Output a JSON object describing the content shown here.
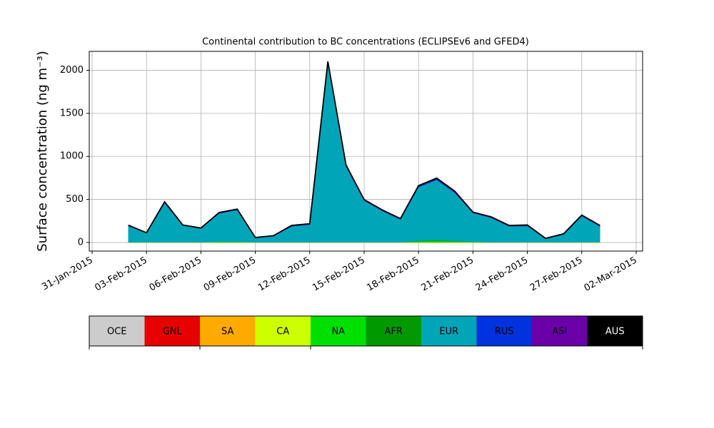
{
  "chart_data": {
    "type": "stacked_area",
    "title": "Continental contribution to BC concentrations (ECLIPSEv6 and GFED4)",
    "y_label": "Surface concentration (ng m⁻³)",
    "x": [
      "2015-02-02",
      "2015-02-03",
      "2015-02-04",
      "2015-02-05",
      "2015-02-06",
      "2015-02-07",
      "2015-02-08",
      "2015-02-09",
      "2015-02-10",
      "2015-02-11",
      "2015-02-12",
      "2015-02-13",
      "2015-02-14",
      "2015-02-15",
      "2015-02-16",
      "2015-02-17",
      "2015-02-18",
      "2015-02-19",
      "2015-02-20",
      "2015-02-21",
      "2015-02-22",
      "2015-02-23",
      "2015-02-24",
      "2015-02-25",
      "2015-02-26",
      "2015-02-27",
      "2015-02-28"
    ],
    "series": [
      {
        "name": "OCE",
        "color": "#cccccc",
        "values": [
          0,
          0,
          0,
          0,
          0,
          0,
          0,
          0,
          0,
          0,
          0,
          0,
          0,
          0,
          0,
          0,
          0,
          0,
          0,
          0,
          0,
          0,
          0,
          0,
          0,
          0,
          0
        ]
      },
      {
        "name": "GNL",
        "color": "#e60000",
        "values": [
          0,
          0,
          0,
          0,
          0,
          0,
          0,
          0,
          0,
          0,
          0,
          0,
          0,
          0,
          0,
          0,
          0,
          0,
          0,
          0,
          0,
          0,
          0,
          0,
          0,
          0,
          0
        ]
      },
      {
        "name": "SA",
        "color": "#ffaa00",
        "values": [
          0,
          0,
          0,
          0,
          0,
          0,
          0,
          0,
          0,
          0,
          0,
          0,
          0,
          0,
          0,
          0,
          0,
          0,
          0,
          0,
          0,
          0,
          0,
          0,
          0,
          0,
          0
        ]
      },
      {
        "name": "CA",
        "color": "#ccff00",
        "values": [
          3,
          3,
          3,
          3,
          3,
          3,
          3,
          3,
          3,
          3,
          3,
          3,
          3,
          3,
          3,
          3,
          3,
          3,
          3,
          3,
          3,
          3,
          3,
          3,
          3,
          3,
          3
        ]
      },
      {
        "name": "NA",
        "color": "#00e000",
        "values": [
          0,
          0,
          0,
          0,
          0,
          5,
          5,
          0,
          0,
          0,
          0,
          0,
          0,
          0,
          0,
          0,
          10,
          15,
          10,
          5,
          0,
          0,
          0,
          0,
          0,
          0,
          0
        ]
      },
      {
        "name": "AFR",
        "color": "#009900",
        "values": [
          0,
          0,
          0,
          0,
          0,
          0,
          0,
          0,
          0,
          0,
          0,
          0,
          0,
          0,
          0,
          0,
          5,
          10,
          5,
          0,
          0,
          0,
          0,
          0,
          0,
          0,
          0
        ]
      },
      {
        "name": "EUR",
        "color": "#00a5b8",
        "values": [
          190,
          105,
          455,
          195,
          160,
          330,
          370,
          50,
          70,
          185,
          205,
          2080,
          880,
          485,
          365,
          265,
          625,
          700,
          560,
          335,
          285,
          185,
          190,
          40,
          90,
          305,
          185
        ]
      },
      {
        "name": "RUS",
        "color": "#0033dd",
        "values": [
          3,
          3,
          5,
          3,
          3,
          5,
          5,
          2,
          3,
          5,
          5,
          10,
          8,
          5,
          5,
          5,
          8,
          10,
          8,
          5,
          5,
          5,
          5,
          2,
          3,
          5,
          5
        ]
      },
      {
        "name": "ASI",
        "color": "#6a00a8",
        "values": [
          5,
          2,
          10,
          2,
          2,
          5,
          5,
          3,
          3,
          5,
          5,
          10,
          10,
          5,
          5,
          5,
          10,
          10,
          10,
          5,
          5,
          5,
          5,
          3,
          5,
          5,
          5
        ]
      },
      {
        "name": "AUS",
        "color": "#000000",
        "values": [
          0,
          0,
          0,
          0,
          0,
          0,
          0,
          0,
          0,
          0,
          0,
          0,
          0,
          0,
          0,
          0,
          0,
          0,
          0,
          0,
          0,
          0,
          0,
          0,
          0,
          0,
          0
        ]
      }
    ],
    "xlim": [
      "2015-01-31",
      "2015-03-02"
    ],
    "xticks": [
      {
        "value": "2015-01-31",
        "label": "31-Jan-2015"
      },
      {
        "value": "2015-02-03",
        "label": "03-Feb-2015"
      },
      {
        "value": "2015-02-06",
        "label": "06-Feb-2015"
      },
      {
        "value": "2015-02-09",
        "label": "09-Feb-2015"
      },
      {
        "value": "2015-02-12",
        "label": "12-Feb-2015"
      },
      {
        "value": "2015-02-15",
        "label": "15-Feb-2015"
      },
      {
        "value": "2015-02-18",
        "label": "18-Feb-2015"
      },
      {
        "value": "2015-02-21",
        "label": "21-Feb-2015"
      },
      {
        "value": "2015-02-24",
        "label": "24-Feb-2015"
      },
      {
        "value": "2015-02-27",
        "label": "27-Feb-2015"
      },
      {
        "value": "2015-03-02",
        "label": "02-Mar-2015"
      }
    ],
    "ylim": [
      -100,
      2220
    ],
    "yticks": [
      0,
      500,
      1000,
      1500,
      2000
    ],
    "grid": true
  }
}
